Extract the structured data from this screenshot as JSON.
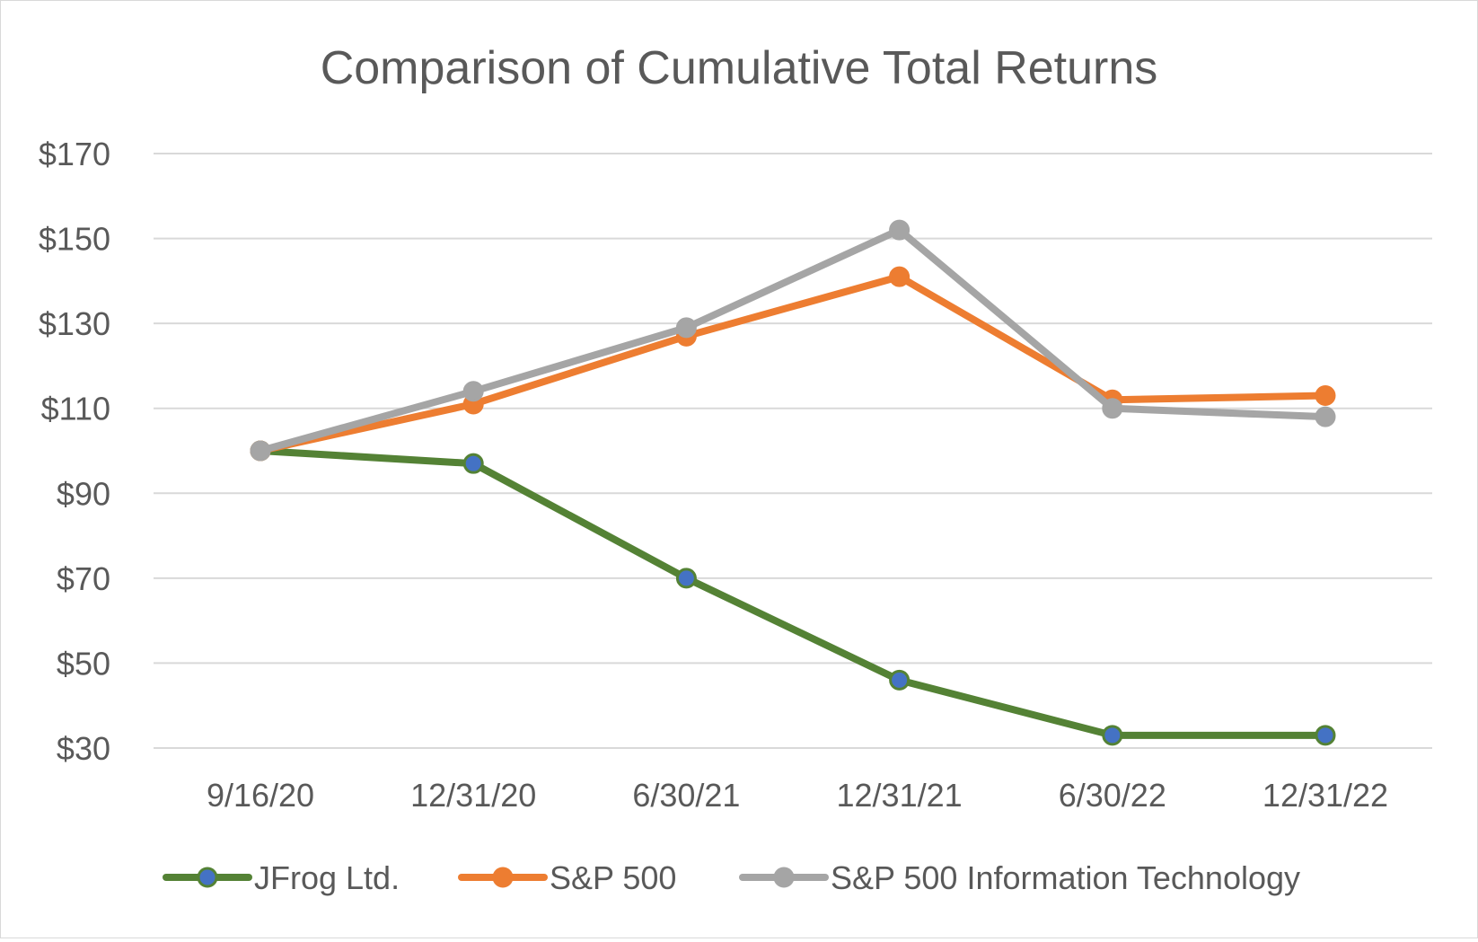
{
  "chart_data": {
    "type": "line",
    "title": "Comparison of Cumulative Total Returns",
    "categories": [
      "9/16/20",
      "12/31/20",
      "6/30/21",
      "12/31/21",
      "6/30/22",
      "12/31/22"
    ],
    "y_tick_labels": [
      "$30",
      "$50",
      "$70",
      "$90",
      "$110",
      "$130",
      "$150",
      "$170"
    ],
    "y_ticks": [
      30,
      50,
      70,
      90,
      110,
      130,
      150,
      170
    ],
    "ylim": [
      30,
      170
    ],
    "grid": true,
    "legend_position": "bottom",
    "series": [
      {
        "name": "JFrog Ltd.",
        "values": [
          100,
          97,
          70,
          46,
          33,
          33
        ],
        "line_color": "#548235",
        "marker_color": "#4472c4"
      },
      {
        "name": "S&P 500",
        "values": [
          100,
          111,
          127,
          141,
          112,
          113
        ],
        "line_color": "#ed7d31",
        "marker_color": "#ed7d31"
      },
      {
        "name": "S&P 500 Information Technology",
        "values": [
          100,
          114,
          129,
          152,
          110,
          108
        ],
        "line_color": "#a5a5a5",
        "marker_color": "#a5a5a5"
      }
    ]
  }
}
